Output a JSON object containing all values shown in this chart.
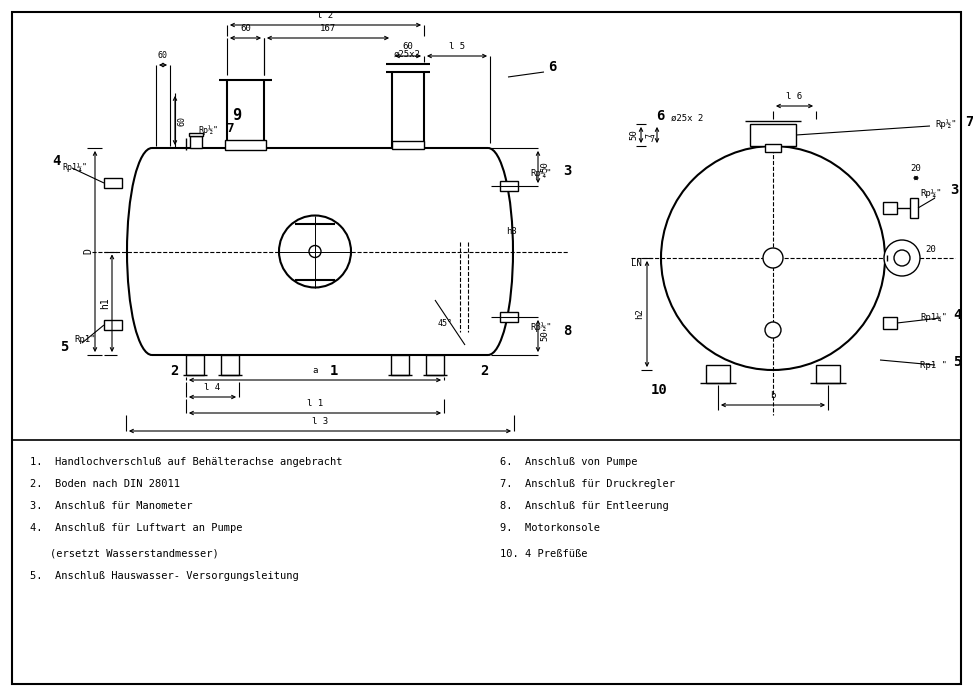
{
  "bg_color": "#ffffff",
  "line_color": "#000000",
  "legend_left": [
    "1.  Handlochverschluß auf Behälterachse angebracht",
    "2.  Boden nach DIN 28011",
    "3.  Anschluß für Manometer",
    "4.  Anschluß für Luftwart an Pumpe",
    "4b. (ersetzt Wasserstandmesser)",
    "5.  Anschluß Hauswasser- Versorgungsleitung"
  ],
  "legend_right": [
    "6.  Anschluß von Pumpe",
    "7.  Anschluß für Druckregler",
    "8.  Anschluß für Entleerung",
    "9.  Motorkonsole",
    "10. 4 Preßfüße"
  ]
}
